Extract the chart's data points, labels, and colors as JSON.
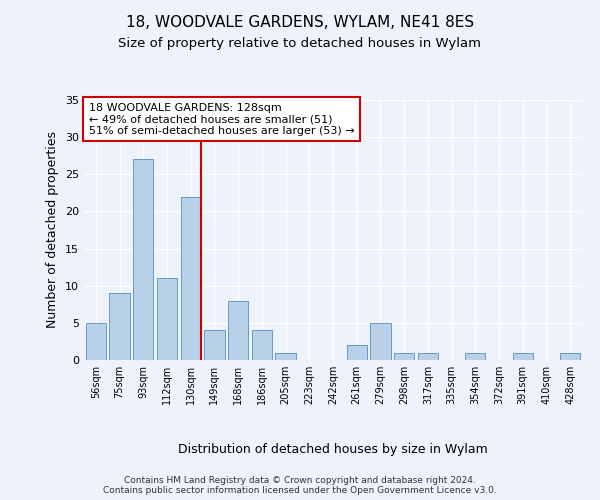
{
  "title": "18, WOODVALE GARDENS, WYLAM, NE41 8ES",
  "subtitle": "Size of property relative to detached houses in Wylam",
  "xlabel": "Distribution of detached houses by size in Wylam",
  "ylabel": "Number of detached properties",
  "categories": [
    "56sqm",
    "75sqm",
    "93sqm",
    "112sqm",
    "130sqm",
    "149sqm",
    "168sqm",
    "186sqm",
    "205sqm",
    "223sqm",
    "242sqm",
    "261sqm",
    "279sqm",
    "298sqm",
    "317sqm",
    "335sqm",
    "354sqm",
    "372sqm",
    "391sqm",
    "410sqm",
    "428sqm"
  ],
  "values": [
    5,
    9,
    27,
    11,
    22,
    4,
    8,
    4,
    1,
    0,
    0,
    2,
    5,
    1,
    1,
    0,
    1,
    0,
    1,
    0,
    1
  ],
  "bar_color": "#b8d0e8",
  "bar_edgecolor": "#6699cc",
  "highlight_index": 4,
  "highlight_line_color": "#cc0000",
  "annotation_text": "18 WOODVALE GARDENS: 128sqm\n← 49% of detached houses are smaller (51)\n51% of semi-detached houses are larger (53) →",
  "annotation_box_edgecolor": "#cc0000",
  "ylim": [
    0,
    35
  ],
  "yticks": [
    0,
    5,
    10,
    15,
    20,
    25,
    30,
    35
  ],
  "background_color": "#eef2fb",
  "plot_background": "#eef2fb",
  "footer": "Contains HM Land Registry data © Crown copyright and database right 2024.\nContains public sector information licensed under the Open Government Licence v3.0.",
  "title_fontsize": 11,
  "subtitle_fontsize": 9.5,
  "xlabel_fontsize": 9,
  "ylabel_fontsize": 9
}
